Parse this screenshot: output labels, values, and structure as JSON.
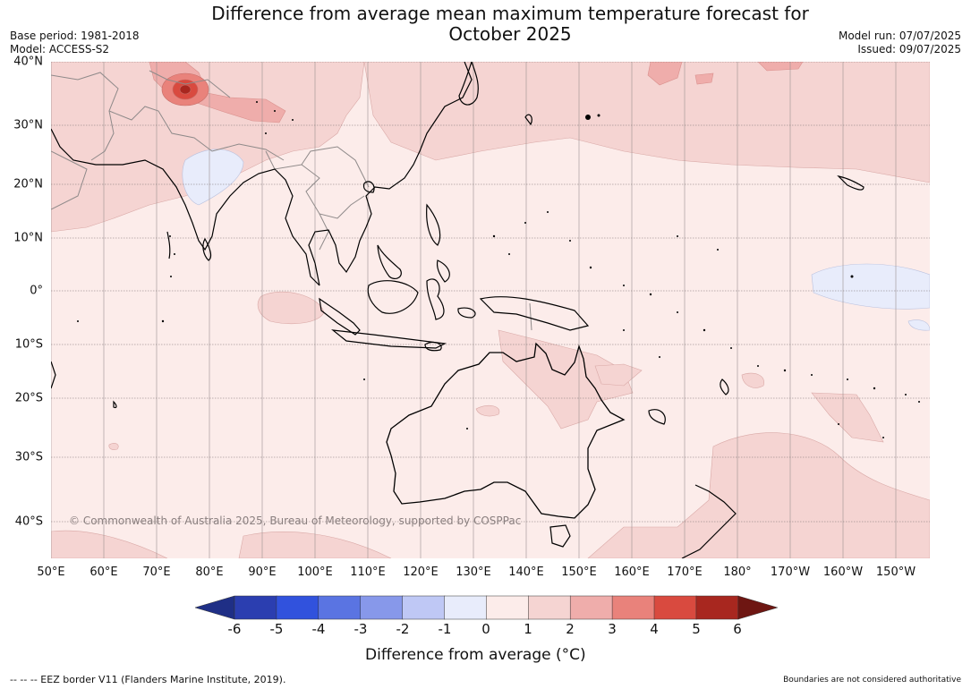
{
  "title": {
    "line1": "Difference from average mean maximum temperature forecast for",
    "line2": "October 2025"
  },
  "meta": {
    "base_period": "Base period: 1981-2018",
    "model": "Model: ACCESS-S2",
    "model_run": "Model run: 07/07/2025",
    "issued": "Issued: 09/07/2025"
  },
  "map": {
    "region": "Indo-Pacific",
    "latitudes": [
      "40°N",
      "30°N",
      "20°N",
      "10°N",
      "0°",
      "10°S",
      "20°S",
      "30°S",
      "40°S"
    ],
    "longitudes": [
      "50°E",
      "60°E",
      "70°E",
      "80°E",
      "90°E",
      "100°E",
      "110°E",
      "120°E",
      "130°E",
      "140°E",
      "150°E",
      "160°E",
      "170°E",
      "180°",
      "170°W",
      "160°W",
      "150°W"
    ],
    "background_color": "#fcecea",
    "copyright": "© Commonwealth of Australia 2025, Bureau of Meteorology, supported by COSPPac"
  },
  "colorbar": {
    "tick_labels": [
      "-6",
      "-5",
      "-4",
      "-3",
      "-2",
      "-1",
      "0",
      "1",
      "2",
      "3",
      "4",
      "5",
      "6"
    ],
    "colors": [
      "#1f2f86",
      "#2b3eb0",
      "#3152dd",
      "#5a74e2",
      "#8798ea",
      "#bfc8f5",
      "#e8ecfb",
      "#fcecea",
      "#f5d4d2",
      "#efadab",
      "#e9827b",
      "#d94a3f",
      "#a8271f",
      "#6e1612"
    ],
    "label": "Difference from average (°C)"
  },
  "footer": {
    "eez_note": "--  --  -- EEZ border V11 (Flanders Marine Institute, 2019).",
    "boundaries_note": "Boundaries are not considered authoritative"
  }
}
